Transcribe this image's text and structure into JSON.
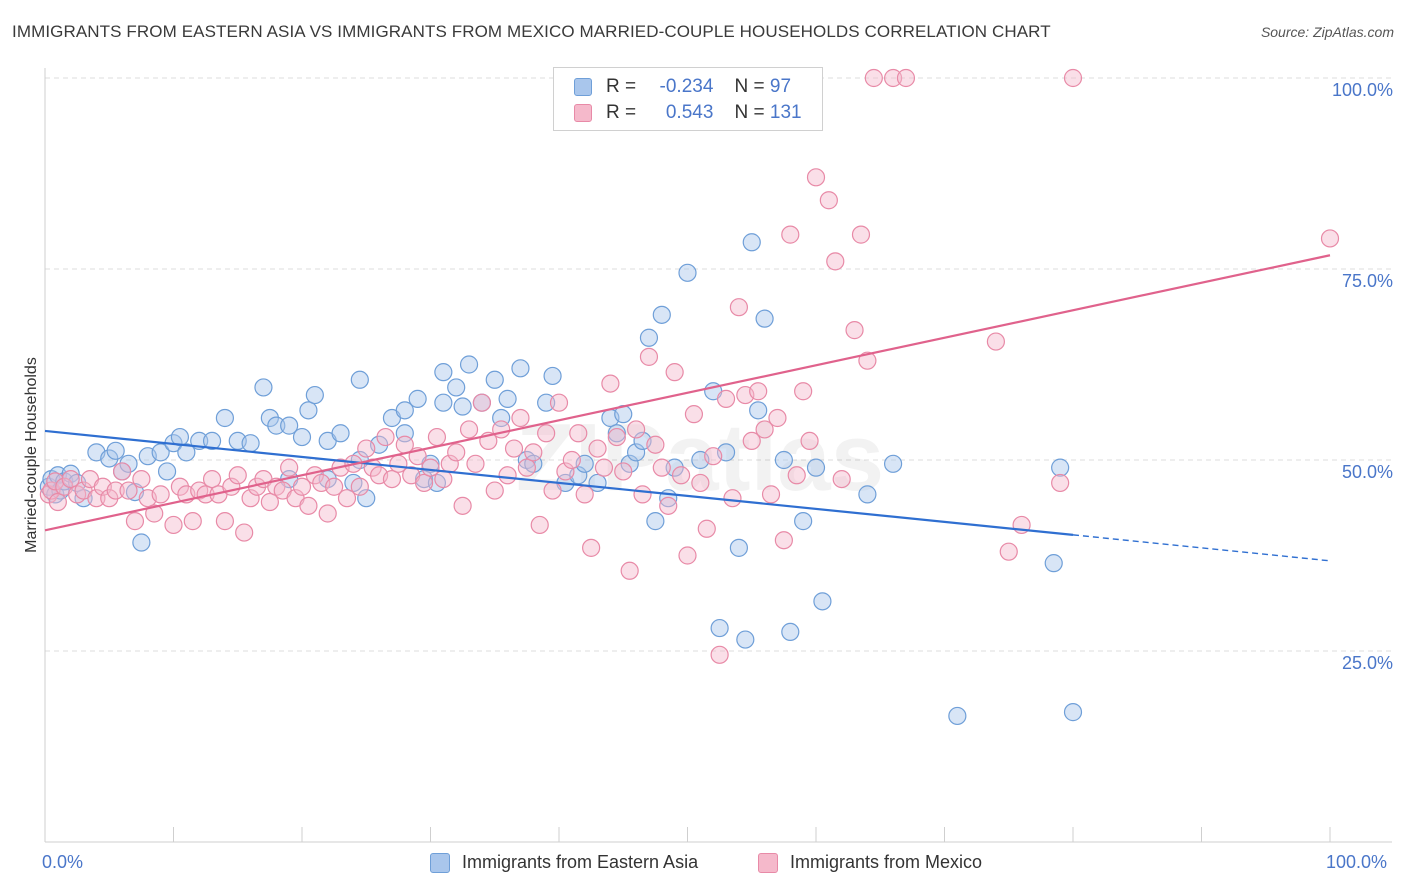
{
  "title": "IMMIGRANTS FROM EASTERN ASIA VS IMMIGRANTS FROM MEXICO MARRIED-COUPLE HOUSEHOLDS CORRELATION CHART",
  "source": "Source: ZipAtlas.com",
  "watermark": "ZIPatlas",
  "legend": {
    "rows": [
      {
        "r_key": "R =",
        "r_val": "-0.234",
        "n_key": "N =",
        "n_val": "97"
      },
      {
        "r_key": "R =",
        "r_val": "0.543",
        "n_key": "N =",
        "n_val": "131"
      }
    ]
  },
  "colors": {
    "blue_fill": "#a9c6ec",
    "blue_stroke": "#6f9fd8",
    "blue_line": "#2f6fd1",
    "pink_fill": "#f5b9cb",
    "pink_stroke": "#e88aa7",
    "pink_line": "#e0628c",
    "tick_text": "#4a76c9",
    "grid": "#dcdcdc"
  },
  "chart_data": {
    "type": "scatter",
    "title": "IMMIGRANTS FROM EASTERN ASIA VS IMMIGRANTS FROM MEXICO MARRIED-COUPLE HOUSEHOLDS CORRELATION CHART",
    "xlabel": "",
    "ylabel": "Married-couple Households",
    "x_tick_labels": [
      "0.0%",
      "100.0%"
    ],
    "y_tick_labels": [
      "25.0%",
      "50.0%",
      "75.0%",
      "100.0%"
    ],
    "xlim": [
      0,
      100
    ],
    "ylim": [
      0,
      100
    ],
    "y_ticks": [
      25,
      50,
      75,
      100
    ],
    "grid": true,
    "legend_position": "bottom",
    "series": [
      {
        "name": "Immigrants from Eastern Asia",
        "color": "#6f9fd8",
        "trend": {
          "x": [
            0,
            100
          ],
          "y": [
            53.8,
            36.8
          ],
          "solid_until_x": 80
        },
        "points": [
          [
            0.3,
            46.5
          ],
          [
            0.5,
            47.5
          ],
          [
            0.8,
            45.5
          ],
          [
            1,
            48
          ],
          [
            1.2,
            46
          ],
          [
            1.5,
            47.2
          ],
          [
            2,
            48.2
          ],
          [
            2.5,
            47
          ],
          [
            3,
            45
          ],
          [
            4,
            51
          ],
          [
            5,
            50.2
          ],
          [
            5.5,
            51.2
          ],
          [
            6,
            48.5
          ],
          [
            6.5,
            49.5
          ],
          [
            7,
            45.8
          ],
          [
            7.5,
            39.2
          ],
          [
            8,
            50.5
          ],
          [
            9,
            51
          ],
          [
            9.5,
            48.5
          ],
          [
            10,
            52.2
          ],
          [
            10.5,
            53
          ],
          [
            11,
            51
          ],
          [
            12,
            52.5
          ],
          [
            13,
            52.5
          ],
          [
            14,
            55.5
          ],
          [
            15,
            52.5
          ],
          [
            16,
            52.2
          ],
          [
            17,
            59.5
          ],
          [
            17.5,
            55.5
          ],
          [
            18,
            54.5
          ],
          [
            19,
            47.5
          ],
          [
            19,
            54.5
          ],
          [
            20,
            53
          ],
          [
            20.5,
            56.5
          ],
          [
            21,
            58.5
          ],
          [
            22,
            52.5
          ],
          [
            22,
            47.5
          ],
          [
            23,
            53.5
          ],
          [
            24,
            47
          ],
          [
            24.5,
            50
          ],
          [
            24.5,
            60.5
          ],
          [
            25,
            45
          ],
          [
            26,
            52
          ],
          [
            27,
            55.5
          ],
          [
            28,
            56.5
          ],
          [
            28,
            53.5
          ],
          [
            29,
            58
          ],
          [
            29.5,
            47.5
          ],
          [
            30,
            49.5
          ],
          [
            30.5,
            47
          ],
          [
            31,
            61.5
          ],
          [
            31,
            57.5
          ],
          [
            32,
            59.5
          ],
          [
            32.5,
            57
          ],
          [
            33,
            62.5
          ],
          [
            34,
            57.5
          ],
          [
            35,
            60.5
          ],
          [
            35.5,
            55.5
          ],
          [
            36,
            58
          ],
          [
            37,
            62
          ],
          [
            37.5,
            50
          ],
          [
            38,
            49.5
          ],
          [
            39,
            57.5
          ],
          [
            39.5,
            61
          ],
          [
            40.5,
            47
          ],
          [
            41.5,
            48
          ],
          [
            42,
            49.5
          ],
          [
            43,
            47
          ],
          [
            44,
            55.5
          ],
          [
            44.5,
            53.5
          ],
          [
            45,
            56
          ],
          [
            45.5,
            49.5
          ],
          [
            46,
            51
          ],
          [
            46.5,
            52.5
          ],
          [
            47,
            66
          ],
          [
            47.5,
            42
          ],
          [
            48,
            69
          ],
          [
            48.5,
            45
          ],
          [
            49,
            49
          ],
          [
            50,
            74.5
          ],
          [
            51,
            50
          ],
          [
            52,
            59
          ],
          [
            52.5,
            28
          ],
          [
            53,
            51
          ],
          [
            54,
            38.5
          ],
          [
            54.5,
            26.5
          ],
          [
            55,
            78.5
          ],
          [
            55.5,
            56.5
          ],
          [
            56,
            68.5
          ],
          [
            57.5,
            50
          ],
          [
            58,
            27.5
          ],
          [
            59,
            42
          ],
          [
            60,
            49
          ],
          [
            60.5,
            31.5
          ],
          [
            64,
            45.5
          ],
          [
            66,
            49.5
          ],
          [
            71,
            16.5
          ],
          [
            78.5,
            36.5
          ],
          [
            79,
            49
          ],
          [
            80,
            17
          ]
        ]
      },
      {
        "name": "Immigrants from Mexico",
        "color": "#e88aa7",
        "trend": {
          "x": [
            0,
            100
          ],
          "y": [
            40.8,
            76.8
          ]
        },
        "points": [
          [
            0.3,
            45.5
          ],
          [
            0.5,
            46
          ],
          [
            0.8,
            47.2
          ],
          [
            1,
            44.5
          ],
          [
            1.5,
            46.5
          ],
          [
            2,
            47.5
          ],
          [
            2.5,
            45.5
          ],
          [
            3,
            46
          ],
          [
            3.5,
            47.5
          ],
          [
            4,
            45
          ],
          [
            4.5,
            46.5
          ],
          [
            5,
            45
          ],
          [
            5.5,
            46
          ],
          [
            6,
            48.5
          ],
          [
            6.5,
            46
          ],
          [
            7,
            42
          ],
          [
            7.5,
            47.5
          ],
          [
            8,
            45
          ],
          [
            8.5,
            43
          ],
          [
            9,
            45.5
          ],
          [
            10,
            41.5
          ],
          [
            10.5,
            46.5
          ],
          [
            11,
            45.5
          ],
          [
            11.5,
            42
          ],
          [
            12,
            46
          ],
          [
            12.5,
            45.5
          ],
          [
            13,
            47.5
          ],
          [
            13.5,
            45.5
          ],
          [
            14,
            42
          ],
          [
            14.5,
            46.5
          ],
          [
            15,
            48
          ],
          [
            15.5,
            40.5
          ],
          [
            16,
            45
          ],
          [
            16.5,
            46.5
          ],
          [
            17,
            47.5
          ],
          [
            17.5,
            44.5
          ],
          [
            18,
            46.5
          ],
          [
            18.5,
            46
          ],
          [
            19,
            49
          ],
          [
            19.5,
            45
          ],
          [
            20,
            46.5
          ],
          [
            20.5,
            44
          ],
          [
            21,
            48
          ],
          [
            21.5,
            47
          ],
          [
            22,
            43
          ],
          [
            22.5,
            46.5
          ],
          [
            23,
            49
          ],
          [
            23.5,
            45
          ],
          [
            24,
            49.5
          ],
          [
            24.5,
            46.5
          ],
          [
            25,
            51.5
          ],
          [
            25.5,
            49
          ],
          [
            26,
            48
          ],
          [
            26.5,
            53
          ],
          [
            27,
            47.5
          ],
          [
            27.5,
            49.5
          ],
          [
            28,
            52
          ],
          [
            28.5,
            48
          ],
          [
            29,
            50.5
          ],
          [
            29.5,
            47
          ],
          [
            30,
            49
          ],
          [
            30.5,
            53
          ],
          [
            31,
            47.5
          ],
          [
            31.5,
            49.5
          ],
          [
            32,
            51
          ],
          [
            32.5,
            44
          ],
          [
            33,
            54
          ],
          [
            33.5,
            49.5
          ],
          [
            34,
            57.5
          ],
          [
            34.5,
            52.5
          ],
          [
            35,
            46
          ],
          [
            35.5,
            54
          ],
          [
            36,
            48
          ],
          [
            36.5,
            51.5
          ],
          [
            37,
            55.5
          ],
          [
            37.5,
            49
          ],
          [
            38,
            51
          ],
          [
            38.5,
            41.5
          ],
          [
            39,
            53.5
          ],
          [
            39.5,
            46
          ],
          [
            40,
            57.5
          ],
          [
            40.5,
            48.5
          ],
          [
            41,
            50
          ],
          [
            41.5,
            53.5
          ],
          [
            42,
            45.5
          ],
          [
            42.5,
            38.5
          ],
          [
            43,
            51.5
          ],
          [
            43.5,
            49
          ],
          [
            44,
            60
          ],
          [
            44.5,
            53
          ],
          [
            45,
            48.5
          ],
          [
            45.5,
            35.5
          ],
          [
            46,
            54
          ],
          [
            46.5,
            45.5
          ],
          [
            47,
            63.5
          ],
          [
            47.5,
            52
          ],
          [
            48,
            49
          ],
          [
            48.5,
            44
          ],
          [
            49,
            61.5
          ],
          [
            49.5,
            48
          ],
          [
            50,
            37.5
          ],
          [
            50.5,
            56
          ],
          [
            51,
            47
          ],
          [
            51.5,
            41
          ],
          [
            52,
            50.5
          ],
          [
            52.5,
            24.5
          ],
          [
            53,
            58
          ],
          [
            53.5,
            45
          ],
          [
            54,
            70
          ],
          [
            54.5,
            58.5
          ],
          [
            55,
            52.5
          ],
          [
            55.5,
            59
          ],
          [
            56,
            54
          ],
          [
            56.5,
            45.5
          ],
          [
            57,
            55.5
          ],
          [
            57.5,
            39.5
          ],
          [
            58,
            79.5
          ],
          [
            58.5,
            48
          ],
          [
            59,
            59
          ],
          [
            59.5,
            52.5
          ],
          [
            60,
            87
          ],
          [
            61,
            84
          ],
          [
            61.5,
            76
          ],
          [
            62,
            47.5
          ],
          [
            63,
            67
          ],
          [
            63.5,
            79.5
          ],
          [
            64,
            63
          ],
          [
            64.5,
            100
          ],
          [
            66,
            100
          ],
          [
            67,
            100
          ],
          [
            74,
            65.5
          ],
          [
            75,
            38
          ],
          [
            76,
            41.5
          ],
          [
            79,
            47
          ],
          [
            80,
            100
          ],
          [
            100,
            79
          ]
        ]
      }
    ]
  },
  "x_axis": {
    "left_label": "0.0%",
    "right_label": "100.0%"
  }
}
